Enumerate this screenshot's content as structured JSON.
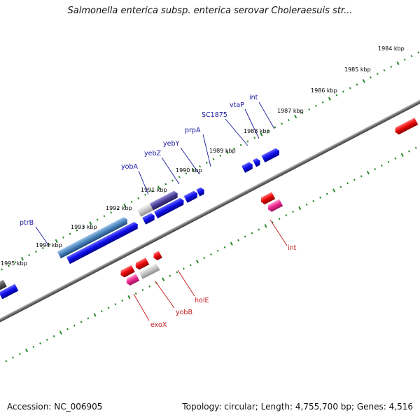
{
  "title": "Salmonella enterica subsp. enterica serovar Choleraesuis str...",
  "footer": {
    "accession": "Accession: NC_006905",
    "stats": "Topology: circular; Length: 4,755,700 bp; Genes: 4,516"
  },
  "colors": {
    "backbone": "#6e6e6e",
    "tick": "#2a8a2a",
    "forward_label": "#1a1aa0",
    "reverse_label": "#c01818"
  },
  "ruler": {
    "labels": [
      "1984 kbp",
      "1985 kbp",
      "1986 kbp",
      "1987 kbp",
      "1988 kbp",
      "1989 kbp",
      "1990 kbp",
      "1991 kbp",
      "1992 kbp",
      "1993 kbp",
      "1994 kbp",
      "1995 kbp"
    ]
  },
  "forward_genes": [
    "ptrB",
    "yobA",
    "yebZ",
    "yebY",
    "prpA",
    "SC1875",
    "vtaP",
    "int"
  ],
  "reverse_genes": [
    "exoX",
    "yobB",
    "holE",
    "int"
  ]
}
